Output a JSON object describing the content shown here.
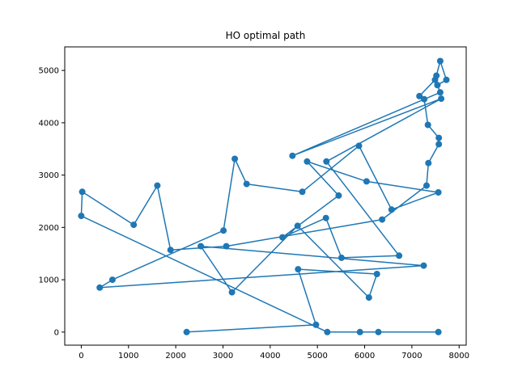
{
  "chart_data": {
    "type": "line",
    "title": "HO optimal path",
    "xlabel": "",
    "ylabel": "",
    "xlim": [
      -350,
      8150
    ],
    "ylim": [
      -250,
      5450
    ],
    "xticks": [
      0,
      1000,
      2000,
      3000,
      4000,
      5000,
      6000,
      7000,
      8000
    ],
    "yticks": [
      0,
      1000,
      2000,
      3000,
      4000,
      5000
    ],
    "grid": false,
    "legend": "none",
    "color": "#1f77b4",
    "marker": "circle",
    "series": [
      {
        "x": [
          2230,
          4970,
          4590,
          6260,
          6090,
          4580,
          3190,
          2530,
          7250,
          390,
          660,
          3010,
          3250,
          3500,
          4680,
          5880,
          6570,
          7560,
          6040,
          4780,
          5450,
          4260,
          5180,
          5510,
          6730,
          5190,
          7620,
          4470,
          7600,
          7540,
          7730,
          7600,
          7520,
          7490,
          7160,
          7260,
          7340,
          7570,
          7570,
          7350,
          7310,
          6370,
          3070,
          1890,
          1610,
          1110,
          20,
          0,
          5210,
          5900,
          6290,
          7560
        ],
        "y": [
          0,
          140,
          1200,
          1110,
          660,
          2030,
          760,
          1640,
          1270,
          850,
          1000,
          1940,
          3310,
          2830,
          2680,
          3560,
          2340,
          2670,
          2880,
          3260,
          2610,
          1810,
          2180,
          1420,
          1460,
          3260,
          4460,
          3370,
          4580,
          4720,
          4820,
          5180,
          4900,
          4820,
          4510,
          4450,
          3960,
          3710,
          3590,
          3230,
          2800,
          2150,
          1640,
          1570,
          2800,
          2050,
          2680,
          2220,
          0,
          0,
          0,
          0
        ]
      }
    ]
  }
}
